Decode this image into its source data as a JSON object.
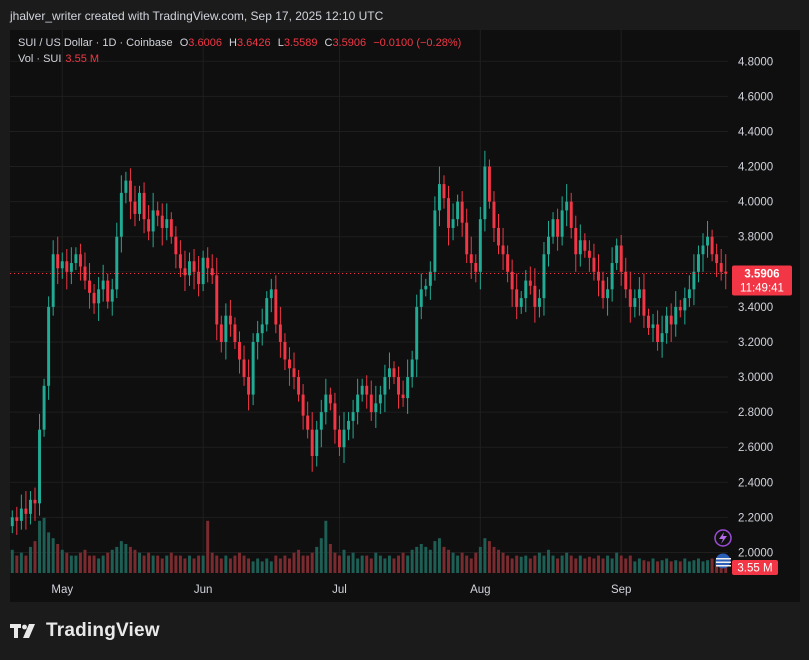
{
  "header": {
    "attribution": "jhalver_writer created with TradingView.com, Sep 17, 2025 12:10 UTC"
  },
  "legend": {
    "symbol": "SUI / US Dollar · 1D · Coinbase",
    "open_label": "O",
    "open": "3.6006",
    "high_label": "H",
    "high": "3.6426",
    "low_label": "L",
    "low": "3.5589",
    "close_label": "C",
    "close": "3.5906",
    "change": "−0.0100 (−0.28%)",
    "vol_label": "Vol · SUI",
    "vol_value": "3.55 M"
  },
  "price_badge": {
    "price": "3.5906",
    "countdown": "11:49:41"
  },
  "volume_badge": "3.55 M",
  "brand": {
    "name": "TradingView"
  },
  "colors": {
    "up": "#22ab94",
    "down": "#f23645",
    "background": "#0f0f0f",
    "grid": "#1f1f1f",
    "volume_up": "#1e5f55",
    "volume_down": "#7a2b2f"
  },
  "chart_data": {
    "type": "candlestick",
    "ylim": [
      1.9,
      4.95
    ],
    "yticks": [
      "4.8000",
      "4.6000",
      "4.4000",
      "4.2000",
      "4.0000",
      "3.8000",
      "3.6000",
      "3.4000",
      "3.2000",
      "3.0000",
      "2.8000",
      "2.6000",
      "2.4000",
      "2.2000",
      "2.0000"
    ],
    "x_labels": [
      {
        "label": "May",
        "index": 11
      },
      {
        "label": "Jun",
        "index": 42
      },
      {
        "label": "Jul",
        "index": 72
      },
      {
        "label": "Aug",
        "index": 103
      },
      {
        "label": "Sep",
        "index": 134
      }
    ],
    "last_price": 3.5906,
    "closes": [
      2.2,
      2.18,
      2.25,
      2.22,
      2.3,
      2.28,
      2.7,
      2.95,
      3.4,
      3.7,
      3.62,
      3.66,
      3.6,
      3.65,
      3.7,
      3.63,
      3.55,
      3.48,
      3.42,
      3.5,
      3.55,
      3.43,
      3.5,
      3.8,
      4.05,
      4.12,
      4.0,
      3.93,
      4.05,
      3.9,
      3.83,
      3.95,
      3.92,
      3.85,
      3.9,
      3.8,
      3.7,
      3.62,
      3.58,
      3.66,
      3.6,
      3.53,
      3.68,
      3.62,
      3.58,
      3.3,
      3.2,
      3.35,
      3.3,
      3.2,
      3.1,
      3.0,
      2.9,
      3.2,
      3.25,
      3.3,
      3.45,
      3.5,
      3.3,
      3.2,
      3.1,
      3.05,
      3.0,
      2.9,
      2.78,
      2.7,
      2.55,
      2.7,
      2.8,
      2.9,
      2.85,
      2.7,
      2.6,
      2.7,
      2.75,
      2.8,
      2.9,
      2.95,
      2.9,
      2.8,
      2.85,
      2.9,
      3.0,
      3.05,
      3.0,
      2.9,
      2.88,
      3.0,
      3.1,
      3.4,
      3.5,
      3.52,
      3.6,
      3.95,
      4.1,
      4.02,
      3.85,
      3.9,
      4.0,
      3.88,
      3.7,
      3.65,
      3.6,
      3.9,
      4.2,
      4.0,
      3.85,
      3.75,
      3.7,
      3.6,
      3.5,
      3.4,
      3.45,
      3.55,
      3.52,
      3.4,
      3.45,
      3.7,
      3.8,
      3.9,
      3.8,
      3.95,
      4.0,
      3.85,
      3.7,
      3.78,
      3.72,
      3.68,
      3.6,
      3.55,
      3.45,
      3.5,
      3.65,
      3.75,
      3.6,
      3.5,
      3.4,
      3.45,
      3.5,
      3.35,
      3.28,
      3.3,
      3.2,
      3.25,
      3.35,
      3.3,
      3.4,
      3.38,
      3.45,
      3.5,
      3.6,
      3.7,
      3.75,
      3.8,
      3.7,
      3.65,
      3.6,
      3.5906
    ],
    "opens": [
      2.15,
      2.2,
      2.18,
      2.25,
      2.22,
      2.3,
      2.28,
      2.7,
      2.95,
      3.4,
      3.7,
      3.62,
      3.66,
      3.6,
      3.65,
      3.7,
      3.63,
      3.55,
      3.48,
      3.42,
      3.5,
      3.55,
      3.43,
      3.5,
      3.8,
      4.05,
      4.12,
      4.0,
      3.93,
      4.05,
      3.9,
      3.83,
      3.95,
      3.92,
      3.85,
      3.9,
      3.8,
      3.7,
      3.62,
      3.58,
      3.66,
      3.6,
      3.53,
      3.68,
      3.62,
      3.58,
      3.3,
      3.2,
      3.35,
      3.3,
      3.2,
      3.1,
      3.0,
      2.9,
      3.2,
      3.25,
      3.3,
      3.45,
      3.5,
      3.3,
      3.2,
      3.1,
      3.05,
      3.0,
      2.9,
      2.78,
      2.7,
      2.55,
      2.7,
      2.8,
      2.9,
      2.85,
      2.7,
      2.6,
      2.7,
      2.75,
      2.8,
      2.9,
      2.95,
      2.9,
      2.8,
      2.85,
      2.9,
      3.0,
      3.05,
      3.0,
      2.9,
      2.88,
      3.0,
      3.1,
      3.4,
      3.5,
      3.52,
      3.6,
      3.95,
      4.1,
      4.02,
      3.85,
      3.9,
      4.0,
      3.88,
      3.7,
      3.65,
      3.6,
      3.9,
      4.2,
      4.0,
      3.85,
      3.75,
      3.7,
      3.6,
      3.5,
      3.4,
      3.45,
      3.55,
      3.52,
      3.4,
      3.45,
      3.7,
      3.8,
      3.9,
      3.8,
      3.95,
      4.0,
      3.85,
      3.7,
      3.78,
      3.72,
      3.68,
      3.6,
      3.55,
      3.45,
      3.5,
      3.65,
      3.75,
      3.6,
      3.5,
      3.4,
      3.45,
      3.5,
      3.35,
      3.28,
      3.3,
      3.2,
      3.25,
      3.35,
      3.3,
      3.4,
      3.38,
      3.45,
      3.5,
      3.6,
      3.7,
      3.75,
      3.8,
      3.7,
      3.65,
      3.6006
    ],
    "volumes": [
      0.4,
      0.3,
      0.35,
      0.3,
      0.45,
      0.55,
      0.9,
      0.95,
      0.7,
      0.6,
      0.5,
      0.4,
      0.35,
      0.3,
      0.3,
      0.35,
      0.4,
      0.3,
      0.3,
      0.25,
      0.3,
      0.35,
      0.4,
      0.45,
      0.55,
      0.5,
      0.45,
      0.4,
      0.35,
      0.3,
      0.35,
      0.3,
      0.3,
      0.25,
      0.3,
      0.35,
      0.3,
      0.3,
      0.25,
      0.3,
      0.25,
      0.3,
      0.3,
      0.9,
      0.35,
      0.3,
      0.25,
      0.3,
      0.25,
      0.3,
      0.35,
      0.3,
      0.25,
      0.2,
      0.25,
      0.2,
      0.25,
      0.2,
      0.3,
      0.25,
      0.3,
      0.25,
      0.35,
      0.4,
      0.3,
      0.3,
      0.35,
      0.45,
      0.6,
      0.9,
      0.5,
      0.35,
      0.3,
      0.4,
      0.3,
      0.35,
      0.25,
      0.3,
      0.3,
      0.25,
      0.35,
      0.3,
      0.25,
      0.3,
      0.25,
      0.3,
      0.35,
      0.3,
      0.4,
      0.45,
      0.5,
      0.45,
      0.4,
      0.55,
      0.6,
      0.45,
      0.4,
      0.35,
      0.3,
      0.35,
      0.3,
      0.25,
      0.35,
      0.45,
      0.6,
      0.55,
      0.45,
      0.4,
      0.35,
      0.3,
      0.25,
      0.3,
      0.28,
      0.3,
      0.25,
      0.3,
      0.35,
      0.3,
      0.4,
      0.3,
      0.25,
      0.3,
      0.35,
      0.3,
      0.25,
      0.3,
      0.25,
      0.28,
      0.25,
      0.3,
      0.25,
      0.3,
      0.25,
      0.35,
      0.3,
      0.25,
      0.3,
      0.2,
      0.25,
      0.22,
      0.2,
      0.25,
      0.2,
      0.22,
      0.25,
      0.2,
      0.22,
      0.2,
      0.25,
      0.2,
      0.22,
      0.25,
      0.2,
      0.22,
      0.25,
      0.2,
      0.15,
      0.15
    ]
  }
}
